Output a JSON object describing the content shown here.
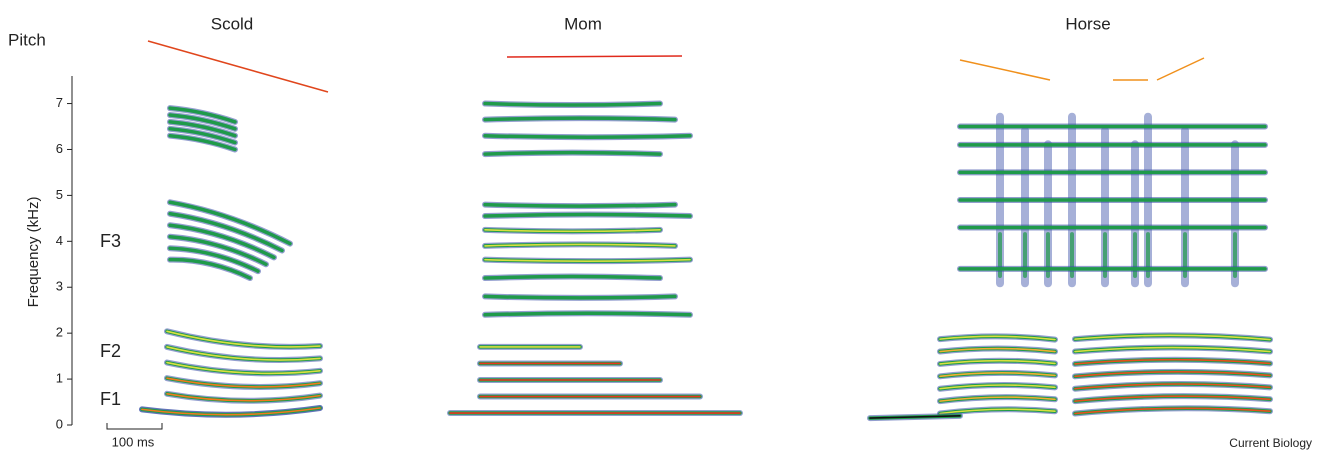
{
  "chart_data": {
    "type": "spectrogram",
    "ylabel": "Frequency (kHz)",
    "ylim": [
      0,
      7.6
    ],
    "yticks": [
      0,
      1,
      2,
      3,
      4,
      5,
      6,
      7
    ],
    "pitch_label": "Pitch",
    "panels": [
      {
        "title": "Scold"
      },
      {
        "title": "Mom"
      },
      {
        "title": "Horse"
      }
    ],
    "annotations": [
      "F3",
      "F2",
      "F1"
    ],
    "scale_bar": "100 ms",
    "credit": "Current Biology"
  }
}
